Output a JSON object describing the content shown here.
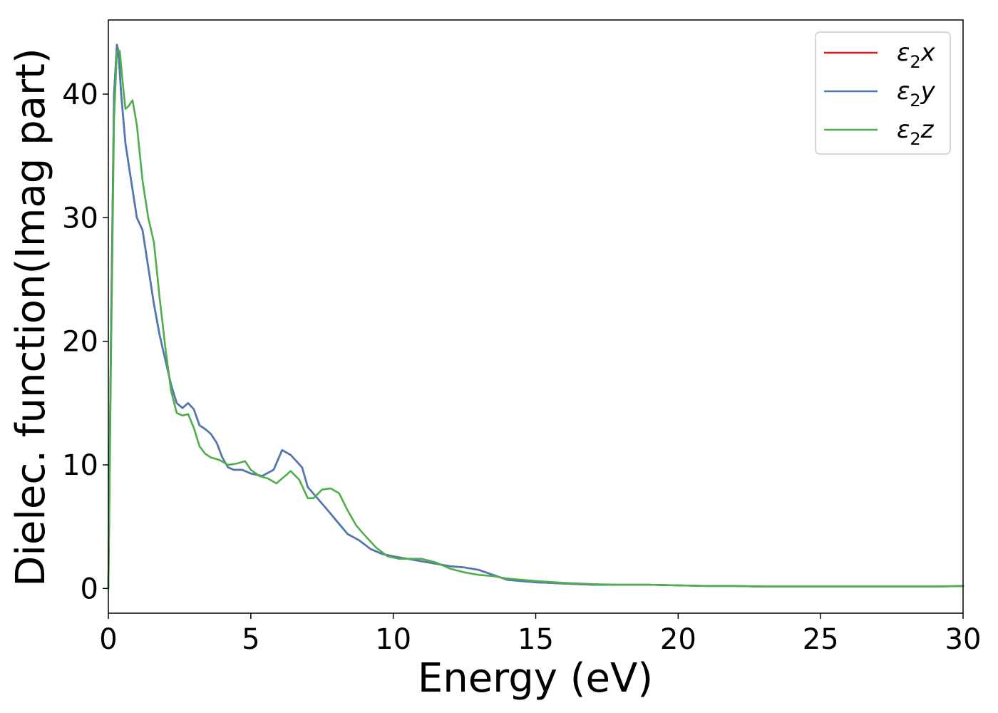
{
  "chart_data": {
    "type": "line",
    "xlabel": "Energy (eV)",
    "ylabel": "Dielec. function(Imag part)",
    "xlim": [
      0,
      30
    ],
    "ylim": [
      -2,
      46
    ],
    "xticks": [
      0,
      5,
      10,
      15,
      20,
      25,
      30
    ],
    "yticks": [
      0,
      10,
      20,
      30,
      40
    ],
    "grid": false,
    "legend_position": "top-right",
    "series": [
      {
        "name": "ε₂x",
        "name_base": "ε",
        "name_sub": "2",
        "name_tail": "x",
        "color": "#e41a1c",
        "x": [
          0,
          0.1,
          0.2,
          0.3,
          0.35,
          0.45,
          0.6,
          0.8,
          1.0,
          1.2,
          1.4,
          1.6,
          1.8,
          2.0,
          2.2,
          2.4,
          2.6,
          2.8,
          3.0,
          3.2,
          3.4,
          3.6,
          3.8,
          4.0,
          4.2,
          4.4,
          4.7,
          5.0,
          5.4,
          5.8,
          6.1,
          6.4,
          6.6,
          6.8,
          7.0,
          7.3,
          7.6,
          8.0,
          8.4,
          8.8,
          9.2,
          9.6,
          10.0,
          10.5,
          11.0,
          11.5,
          12.0,
          12.5,
          13.0,
          13.5,
          14.0,
          15.0,
          16.0,
          17.0,
          18.0,
          19.0,
          20.0,
          21.0,
          22.0,
          23.0,
          24.0,
          25.0,
          26.0,
          27.0,
          28.0,
          29.0,
          30.0
        ],
        "values": [
          0,
          22,
          40,
          44,
          43.5,
          40,
          36,
          33,
          30,
          29,
          26,
          23,
          20.5,
          18.5,
          16.5,
          15,
          14.6,
          15,
          14.5,
          13.2,
          12.9,
          12.5,
          11.8,
          10.6,
          9.8,
          9.6,
          9.6,
          9.3,
          9.1,
          9.6,
          11.2,
          10.8,
          10.3,
          9.8,
          8.2,
          7.4,
          6.6,
          5.5,
          4.4,
          3.9,
          3.2,
          2.8,
          2.6,
          2.4,
          2.2,
          2.0,
          1.8,
          1.7,
          1.5,
          1.1,
          0.7,
          0.5,
          0.4,
          0.3,
          0.3,
          0.3,
          0.25,
          0.2,
          0.2,
          0.15,
          0.15,
          0.15,
          0.15,
          0.15,
          0.15,
          0.15,
          0.2
        ]
      },
      {
        "name": "ε₂y",
        "name_base": "ε",
        "name_sub": "2",
        "name_tail": "y",
        "color": "#4a7ab8",
        "x": [
          0,
          0.1,
          0.2,
          0.3,
          0.35,
          0.45,
          0.6,
          0.8,
          1.0,
          1.2,
          1.4,
          1.6,
          1.8,
          2.0,
          2.2,
          2.4,
          2.6,
          2.8,
          3.0,
          3.2,
          3.4,
          3.6,
          3.8,
          4.0,
          4.2,
          4.4,
          4.7,
          5.0,
          5.4,
          5.8,
          6.1,
          6.4,
          6.6,
          6.8,
          7.0,
          7.3,
          7.6,
          8.0,
          8.4,
          8.8,
          9.2,
          9.6,
          10.0,
          10.5,
          11.0,
          11.5,
          12.0,
          12.5,
          13.0,
          13.5,
          14.0,
          15.0,
          16.0,
          17.0,
          18.0,
          19.0,
          20.0,
          21.0,
          22.0,
          23.0,
          24.0,
          25.0,
          26.0,
          27.0,
          28.0,
          29.0,
          30.0
        ],
        "values": [
          0,
          22,
          40,
          44,
          43.5,
          40,
          36,
          33,
          30,
          29,
          26,
          23,
          20.5,
          18.5,
          16.5,
          15,
          14.6,
          15,
          14.5,
          13.2,
          12.9,
          12.5,
          11.8,
          10.6,
          9.8,
          9.6,
          9.6,
          9.3,
          9.1,
          9.6,
          11.2,
          10.8,
          10.3,
          9.8,
          8.2,
          7.4,
          6.6,
          5.5,
          4.4,
          3.9,
          3.2,
          2.8,
          2.6,
          2.4,
          2.2,
          2.0,
          1.8,
          1.7,
          1.5,
          1.1,
          0.7,
          0.5,
          0.4,
          0.3,
          0.3,
          0.3,
          0.25,
          0.2,
          0.2,
          0.15,
          0.15,
          0.15,
          0.15,
          0.15,
          0.15,
          0.15,
          0.2
        ]
      },
      {
        "name": "ε₂z",
        "name_base": "ε",
        "name_sub": "2",
        "name_tail": "z",
        "color": "#4daf4a",
        "x": [
          0,
          0.1,
          0.2,
          0.3,
          0.4,
          0.5,
          0.6,
          0.7,
          0.85,
          1.0,
          1.2,
          1.4,
          1.6,
          1.8,
          2.0,
          2.2,
          2.4,
          2.6,
          2.8,
          3.0,
          3.2,
          3.4,
          3.6,
          3.9,
          4.2,
          4.5,
          4.8,
          5.0,
          5.3,
          5.6,
          5.9,
          6.1,
          6.4,
          6.7,
          7.0,
          7.2,
          7.5,
          7.8,
          8.1,
          8.4,
          8.7,
          9.0,
          9.4,
          9.8,
          10.2,
          10.6,
          11.0,
          11.5,
          12.0,
          12.5,
          13.0,
          13.5,
          14.0,
          15.0,
          16.0,
          17.0,
          18.0,
          19.0,
          20.0,
          21.0,
          22.0,
          23.0,
          24.0,
          25.0,
          26.0,
          27.0,
          28.0,
          29.0,
          30.0
        ],
        "values": [
          0,
          20,
          38,
          43.5,
          43.5,
          41,
          38.8,
          39,
          39.5,
          37.5,
          33,
          30,
          28,
          23.5,
          19.5,
          16,
          14.2,
          14,
          14.1,
          13,
          11.5,
          10.9,
          10.6,
          10.4,
          10.0,
          10.1,
          10.3,
          9.6,
          9.1,
          8.9,
          8.5,
          8.9,
          9.5,
          8.8,
          7.3,
          7.3,
          8.0,
          8.1,
          7.7,
          6.3,
          5.1,
          4.3,
          3.3,
          2.6,
          2.4,
          2.4,
          2.4,
          2.1,
          1.6,
          1.3,
          1.1,
          1.0,
          0.8,
          0.6,
          0.45,
          0.35,
          0.3,
          0.3,
          0.25,
          0.2,
          0.2,
          0.15,
          0.15,
          0.15,
          0.15,
          0.15,
          0.15,
          0.15,
          0.2
        ]
      }
    ]
  }
}
